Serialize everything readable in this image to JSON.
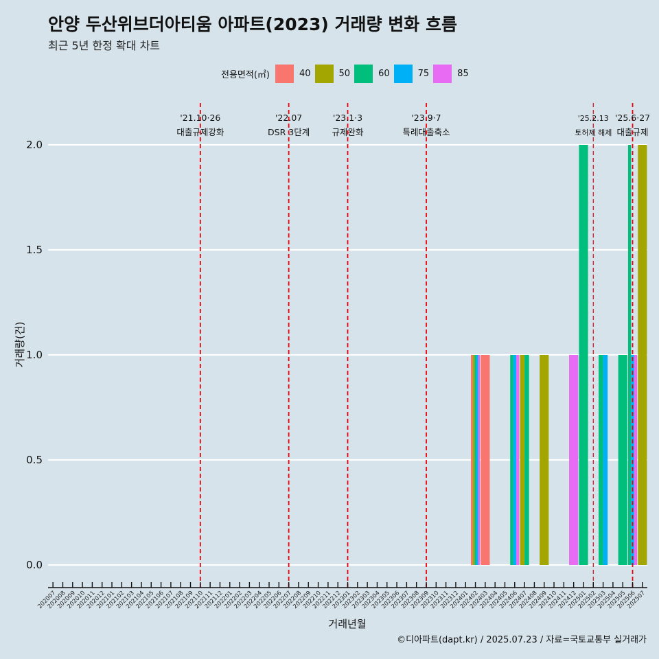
{
  "header": {
    "title": "안양 두산위브더아티움 아파트(2023) 거래량 변화 흐름",
    "subtitle": "최근 5년 한정 확대 차트"
  },
  "legend": {
    "title": "전용면적(㎡)",
    "items": [
      {
        "label": "40",
        "color": "#f8766d"
      },
      {
        "label": "50",
        "color": "#a3a500"
      },
      {
        "label": "60",
        "color": "#00bf7d"
      },
      {
        "label": "75",
        "color": "#00b0f6"
      },
      {
        "label": "85",
        "color": "#e76bf3"
      }
    ]
  },
  "caption": "©디아파트(dapt.kr) / 2025.07.23 / 자료=국토교통부 실거래가",
  "chart_data": {
    "type": "bar",
    "xlabel": "거래년월",
    "ylabel": "거래량(건)",
    "ylim": [
      0,
      2
    ],
    "yticks": [
      0.0,
      0.5,
      1.0,
      1.5,
      2.0
    ],
    "ytick_labels": [
      "0.0",
      "0.5",
      "1.0",
      "1.5",
      "2.0"
    ],
    "grid": true,
    "legend_position": "top",
    "categories": [
      "202007",
      "202008",
      "202009",
      "202010",
      "202011",
      "202012",
      "202101",
      "202102",
      "202103",
      "202104",
      "202105",
      "202106",
      "202107",
      "202108",
      "202109",
      "202110",
      "202111",
      "202112",
      "202201",
      "202202",
      "202203",
      "202204",
      "202205",
      "202206",
      "202207",
      "202208",
      "202209",
      "202210",
      "202211",
      "202212",
      "202301",
      "202302",
      "202303",
      "202304",
      "202305",
      "202306",
      "202307",
      "202308",
      "202309",
      "202310",
      "202311",
      "202312",
      "202401",
      "202402",
      "202403",
      "202404",
      "202405",
      "202406",
      "202407",
      "202408",
      "202409",
      "202410",
      "202411",
      "202412",
      "202501",
      "202502",
      "202503",
      "202504",
      "202505",
      "202506",
      "202507"
    ],
    "series": [
      {
        "name": "40",
        "color": "#f8766d",
        "values": [
          0,
          0,
          0,
          0,
          0,
          0,
          0,
          0,
          0,
          0,
          0,
          0,
          0,
          0,
          0,
          0,
          0,
          0,
          0,
          0,
          0,
          0,
          0,
          0,
          0,
          0,
          0,
          0,
          0,
          0,
          0,
          0,
          0,
          0,
          0,
          0,
          0,
          0,
          0,
          0,
          0,
          0,
          0,
          1,
          1,
          0,
          0,
          0,
          0,
          0,
          0,
          0,
          0,
          0,
          0,
          0,
          0,
          0,
          0,
          0,
          0
        ]
      },
      {
        "name": "50",
        "color": "#a3a500",
        "values": [
          0,
          0,
          0,
          0,
          0,
          0,
          0,
          0,
          0,
          0,
          0,
          0,
          0,
          0,
          0,
          0,
          0,
          0,
          0,
          0,
          0,
          0,
          0,
          0,
          0,
          0,
          0,
          0,
          0,
          0,
          0,
          0,
          0,
          0,
          0,
          0,
          0,
          0,
          0,
          0,
          0,
          0,
          0,
          1,
          0,
          0,
          0,
          0,
          1,
          0,
          1,
          0,
          0,
          0,
          0,
          0,
          0,
          0,
          0,
          0,
          2
        ]
      },
      {
        "name": "60",
        "color": "#00bf7d",
        "values": [
          0,
          0,
          0,
          0,
          0,
          0,
          0,
          0,
          0,
          0,
          0,
          0,
          0,
          0,
          0,
          0,
          0,
          0,
          0,
          0,
          0,
          0,
          0,
          0,
          0,
          0,
          0,
          0,
          0,
          0,
          0,
          0,
          0,
          0,
          0,
          0,
          0,
          0,
          0,
          0,
          0,
          0,
          0,
          1,
          0,
          0,
          0,
          1,
          1,
          0,
          0,
          0,
          0,
          0,
          2,
          0,
          1,
          0,
          1,
          2,
          0
        ]
      },
      {
        "name": "75",
        "color": "#00b0f6",
        "values": [
          0,
          0,
          0,
          0,
          0,
          0,
          0,
          0,
          0,
          0,
          0,
          0,
          0,
          0,
          0,
          0,
          0,
          0,
          0,
          0,
          0,
          0,
          0,
          0,
          0,
          0,
          0,
          0,
          0,
          0,
          0,
          0,
          0,
          0,
          0,
          0,
          0,
          0,
          0,
          0,
          0,
          0,
          0,
          1,
          0,
          0,
          0,
          1,
          0,
          0,
          0,
          0,
          0,
          0,
          0,
          0,
          1,
          0,
          0,
          1,
          0
        ]
      },
      {
        "name": "85",
        "color": "#e76bf3",
        "values": [
          0,
          0,
          0,
          0,
          0,
          0,
          0,
          0,
          0,
          0,
          0,
          0,
          0,
          0,
          0,
          0,
          0,
          0,
          0,
          0,
          0,
          0,
          0,
          0,
          0,
          0,
          0,
          0,
          0,
          0,
          0,
          0,
          0,
          0,
          0,
          0,
          0,
          0,
          0,
          0,
          0,
          0,
          0,
          1,
          0,
          0,
          0,
          1,
          0,
          0,
          0,
          0,
          0,
          1,
          0,
          0,
          0,
          0,
          0,
          1,
          0
        ]
      }
    ],
    "annotations": [
      {
        "date": "202110",
        "line1": "'21.10·26",
        "line2": "대출규제강화",
        "small": false
      },
      {
        "date": "202207",
        "line1": "'22.07",
        "line2": "DSR 3단계",
        "small": false
      },
      {
        "date": "202301",
        "line1": "'23.1·3",
        "line2": "규제완화",
        "small": false
      },
      {
        "date": "202309",
        "line1": "'23.9·7",
        "line2": "특례대출축소",
        "small": false
      },
      {
        "date": "202502",
        "line1": "'25.2.13",
        "line2": "토허제 해제",
        "small": true
      },
      {
        "date": "202506",
        "line1": "'25.6·27",
        "line2": "대출규제",
        "small": false
      }
    ],
    "annotation_color": "#e8000b"
  }
}
